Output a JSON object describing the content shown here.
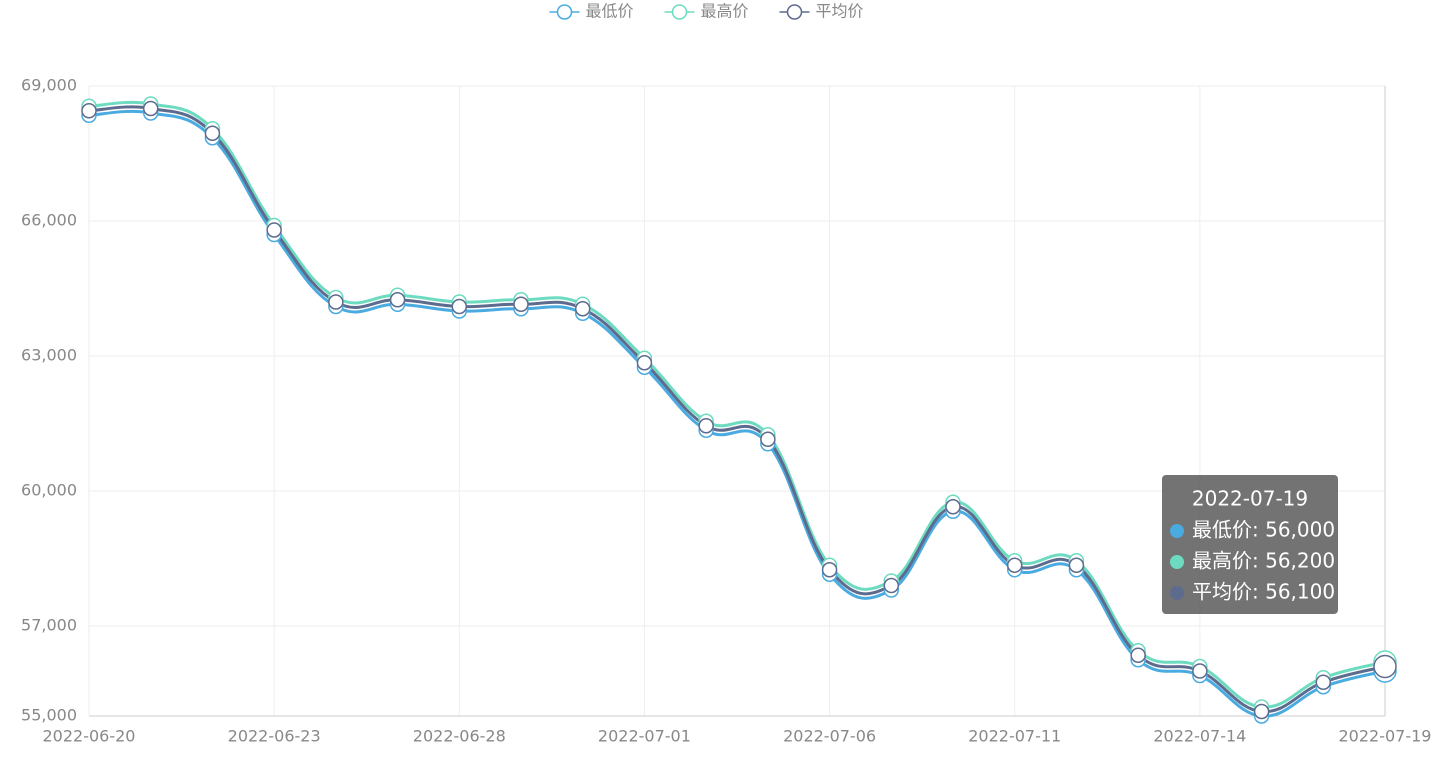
{
  "chart_data": {
    "type": "line",
    "categories": [
      "2022-06-20",
      null,
      null,
      "2022-06-23",
      null,
      null,
      "2022-06-28",
      null,
      null,
      "2022-07-01",
      null,
      null,
      "2022-07-06",
      null,
      null,
      "2022-07-11",
      null,
      null,
      "2022-07-14",
      null,
      null,
      "2022-07-19"
    ],
    "series": [
      {
        "name": "最低价",
        "color": "#4aabe0",
        "values": [
          68350,
          68400,
          67850,
          65700,
          64100,
          64150,
          64000,
          64050,
          63950,
          62750,
          61350,
          61050,
          58150,
          57800,
          59550,
          58250,
          58250,
          56250,
          55900,
          55000,
          55650,
          56000
        ]
      },
      {
        "name": "最高价",
        "color": "#6ddbc0",
        "values": [
          68550,
          68600,
          68050,
          65900,
          64300,
          64350,
          64200,
          64250,
          64150,
          62950,
          61550,
          61250,
          58350,
          58000,
          59750,
          58450,
          58450,
          56450,
          56100,
          55200,
          55850,
          56200
        ]
      },
      {
        "name": "平均价",
        "color": "#5d6b8e",
        "values": [
          68450,
          68500,
          67950,
          65800,
          64200,
          64250,
          64100,
          64150,
          64050,
          62850,
          61450,
          61150,
          58250,
          57900,
          59650,
          58350,
          58350,
          56350,
          56000,
          55100,
          55750,
          56100
        ]
      }
    ],
    "ylim": [
      55000,
      69000
    ],
    "yticks": [
      {
        "value": 55000,
        "label": "55,000"
      },
      {
        "value": 57000,
        "label": "57,000"
      },
      {
        "value": 60000,
        "label": "60,000"
      },
      {
        "value": 63000,
        "label": "63,000"
      },
      {
        "value": 66000,
        "label": "66,000"
      },
      {
        "value": 69000,
        "label": "69,000"
      }
    ],
    "grid": true,
    "tooltip": {
      "title": "2022-07-19",
      "lines": [
        "最低价: 56,000",
        "最高价: 56,200",
        "平均价: 56,100"
      ]
    }
  }
}
